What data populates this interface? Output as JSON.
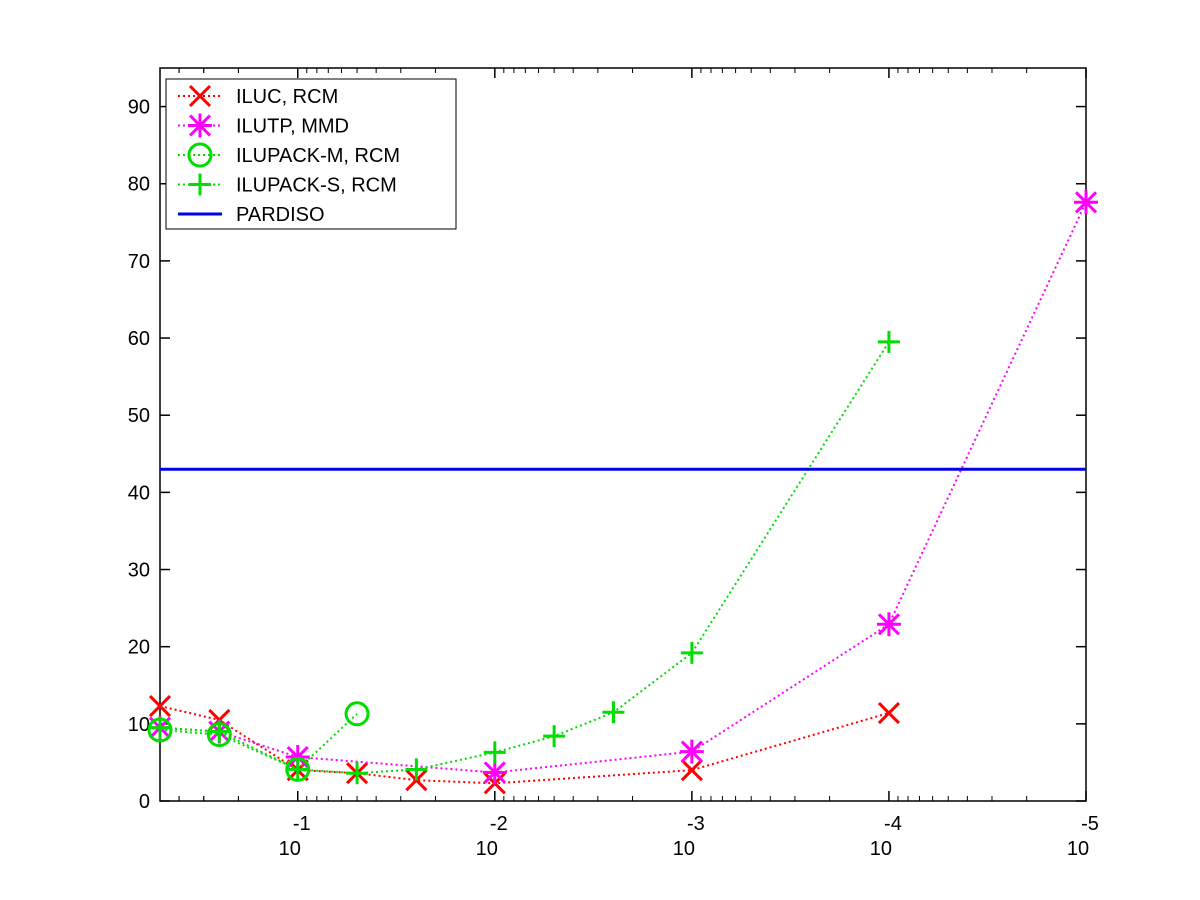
{
  "chart_data": {
    "type": "line",
    "title": "",
    "xlabel": "",
    "ylabel": "",
    "x_scale": "log",
    "x_direction": "decreasing",
    "xlim": [
      0.5,
      1e-05
    ],
    "ylim": [
      0,
      95
    ],
    "grid": false,
    "legend_position": "top-left",
    "x_ticks": [
      {
        "value": 0.1,
        "base": "10",
        "exponent": "-1"
      },
      {
        "value": 0.01,
        "base": "10",
        "exponent": "-2"
      },
      {
        "value": 0.001,
        "base": "10",
        "exponent": "-3"
      },
      {
        "value": 0.0001,
        "base": "10",
        "exponent": "-4"
      },
      {
        "value": 1e-05,
        "base": "10",
        "exponent": "-5"
      }
    ],
    "y_ticks": [
      "0",
      "10",
      "20",
      "30",
      "40",
      "50",
      "60",
      "70",
      "80",
      "90"
    ],
    "series": [
      {
        "name": "ILUC, RCM",
        "color": "#ff0000",
        "marker": "x",
        "line": "dotted",
        "x": [
          0.5,
          0.25,
          0.1,
          0.05,
          0.025,
          0.01,
          0.001,
          0.0001
        ],
        "y": [
          12.3,
          10.5,
          4.0,
          3.6,
          2.7,
          2.3,
          4.0,
          11.4
        ]
      },
      {
        "name": "ILUTP, MMD",
        "color": "#ff00ff",
        "marker": "star",
        "line": "dotted",
        "x": [
          0.5,
          0.25,
          0.1,
          0.01,
          0.001,
          0.0001,
          1e-05
        ],
        "y": [
          9.5,
          9.0,
          5.7,
          3.7,
          6.4,
          22.9,
          77.6
        ]
      },
      {
        "name": "ILUPACK-M, RCM",
        "color": "#00dd00",
        "marker": "circle",
        "line": "dotted",
        "x": [
          0.5,
          0.25,
          0.1,
          0.05
        ],
        "y": [
          9.2,
          8.6,
          4.1,
          11.3
        ]
      },
      {
        "name": "ILUPACK-S, RCM",
        "color": "#00dd00",
        "marker": "plus",
        "line": "dotted",
        "x": [
          0.5,
          0.25,
          0.1,
          0.05,
          0.025,
          0.01,
          0.005,
          0.0025,
          0.001,
          0.0001
        ],
        "y": [
          9.5,
          9.0,
          4.1,
          3.6,
          4.1,
          6.3,
          8.4,
          11.5,
          19.2,
          59.5
        ]
      },
      {
        "name": "PARDISO",
        "color": "#0000ee",
        "marker": "none",
        "line": "solid",
        "x": [
          0.5,
          1e-05
        ],
        "y": [
          43,
          43
        ]
      }
    ]
  }
}
